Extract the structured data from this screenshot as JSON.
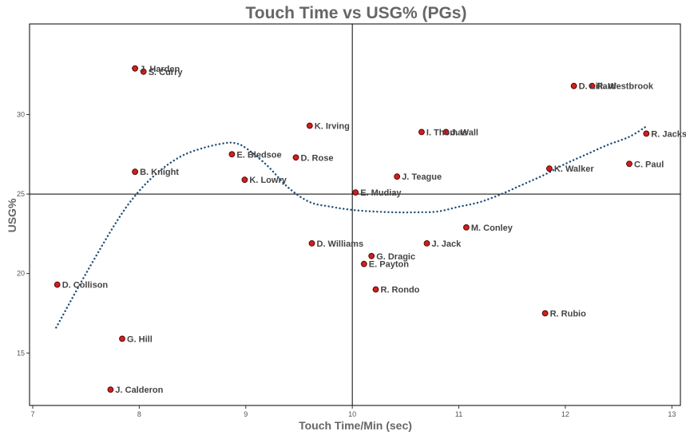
{
  "chart_data": {
    "type": "scatter",
    "title": "Touch Time vs USG% (PGs)",
    "xlabel": "Touch Time/Min (sec)",
    "ylabel": "USG%",
    "xlim": [
      6.97,
      13.08
    ],
    "ylim": [
      11.7,
      35.7
    ],
    "xticks": [
      7,
      8,
      9,
      10,
      11,
      12,
      13
    ],
    "yticks": [
      15,
      20,
      25,
      30
    ],
    "grid": false,
    "reference_lines": {
      "x": 10.0,
      "y": 25.0
    },
    "colors": {
      "point_fill": "#cc2222",
      "point_stroke": "#5a0000",
      "trend": "#1f4e79",
      "frame": "#000000"
    },
    "points": [
      {
        "label": "J. Harden",
        "x": 7.96,
        "y": 32.9
      },
      {
        "label": "S. Curry",
        "x": 8.04,
        "y": 32.7
      },
      {
        "label": "R. Westbrook",
        "x": 12.25,
        "y": 31.8
      },
      {
        "label": "D. Lillard",
        "x": 12.08,
        "y": 31.8
      },
      {
        "label": "K. Irving",
        "x": 9.6,
        "y": 29.3
      },
      {
        "label": "I. Thomas",
        "x": 10.65,
        "y": 28.9
      },
      {
        "label": "J. Wall",
        "x": 10.88,
        "y": 28.9
      },
      {
        "label": "R. Jackson",
        "x": 12.76,
        "y": 28.8
      },
      {
        "label": "E. Bledsoe",
        "x": 8.87,
        "y": 27.5
      },
      {
        "label": "D. Rose",
        "x": 9.47,
        "y": 27.3
      },
      {
        "label": "C. Paul",
        "x": 12.6,
        "y": 26.9
      },
      {
        "label": "K. Walker",
        "x": 11.85,
        "y": 26.6
      },
      {
        "label": "B. Knight",
        "x": 7.96,
        "y": 26.4
      },
      {
        "label": "J. Teague",
        "x": 10.42,
        "y": 26.1
      },
      {
        "label": "K. Lowry",
        "x": 8.99,
        "y": 25.9
      },
      {
        "label": "E. Mudiay",
        "x": 10.03,
        "y": 25.1
      },
      {
        "label": "M. Conley",
        "x": 11.07,
        "y": 22.9
      },
      {
        "label": "D. Williams",
        "x": 9.62,
        "y": 21.9
      },
      {
        "label": "J. Jack",
        "x": 10.7,
        "y": 21.9
      },
      {
        "label": "G. Dragic",
        "x": 10.18,
        "y": 21.1
      },
      {
        "label": "E. Payton",
        "x": 10.11,
        "y": 20.6
      },
      {
        "label": "D. Collison",
        "x": 7.23,
        "y": 19.3
      },
      {
        "label": "R. Rondo",
        "x": 10.22,
        "y": 19.0
      },
      {
        "label": "R. Rubio",
        "x": 11.81,
        "y": 17.5
      },
      {
        "label": "G. Hill",
        "x": 7.84,
        "y": 15.9
      },
      {
        "label": "J. Calderon",
        "x": 7.73,
        "y": 12.7
      }
    ],
    "trend": {
      "style": "dotted",
      "x": [
        7.22,
        7.5,
        7.8,
        8.0,
        8.2,
        8.4,
        8.6,
        8.8,
        8.9,
        9.0,
        9.2,
        9.4,
        9.6,
        9.8,
        10.0,
        10.2,
        10.4,
        10.6,
        10.8,
        11.0,
        11.2,
        11.4,
        11.6,
        11.8,
        12.0,
        12.2,
        12.4,
        12.6,
        12.77
      ],
      "y": [
        16.6,
        20.0,
        23.4,
        25.2,
        26.5,
        27.4,
        27.9,
        28.2,
        28.2,
        27.9,
        26.8,
        25.4,
        24.5,
        24.2,
        24.0,
        23.9,
        23.85,
        23.85,
        23.9,
        24.2,
        24.5,
        25.0,
        25.6,
        26.2,
        26.9,
        27.5,
        28.1,
        28.6,
        29.3
      ]
    }
  }
}
